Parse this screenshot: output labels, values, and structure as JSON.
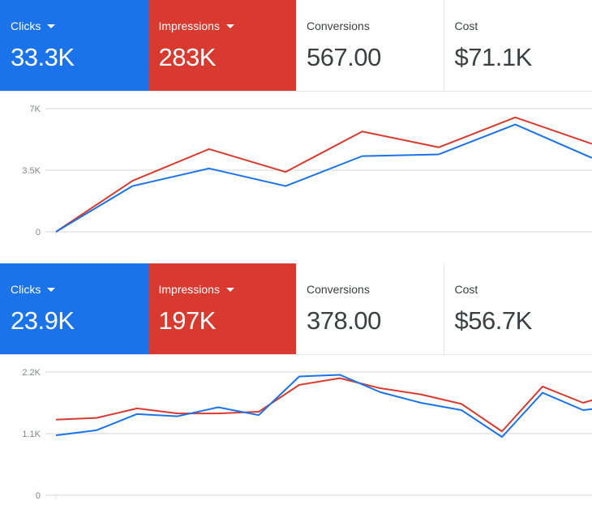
{
  "colors": {
    "clicks": "#1a73e8",
    "impressions": "#d93a30",
    "grid": "#e3e3e3"
  },
  "panels": [
    {
      "cards": [
        {
          "label": "Clicks",
          "value": "33.3K",
          "selected": true,
          "dropdown": true
        },
        {
          "label": "Impressions",
          "value": "283K",
          "selected": true,
          "dropdown": true
        },
        {
          "label": "Conversions",
          "value": "567.00",
          "selected": false
        },
        {
          "label": "Cost",
          "value": "$71.1K",
          "selected": false
        }
      ]
    },
    {
      "cards": [
        {
          "label": "Clicks",
          "value": "23.9K",
          "selected": true,
          "dropdown": true
        },
        {
          "label": "Impressions",
          "value": "197K",
          "selected": true,
          "dropdown": true
        },
        {
          "label": "Conversions",
          "value": "378.00",
          "selected": false
        },
        {
          "label": "Cost",
          "value": "$56.7K",
          "selected": false
        }
      ]
    }
  ],
  "chart_data": [
    {
      "type": "line",
      "yticks": [
        0,
        3500,
        7000
      ],
      "ytick_labels": [
        "0",
        "3.5K",
        "7K"
      ],
      "ylim": [
        0,
        7000
      ],
      "grid": true,
      "series": [
        {
          "name": "Clicks",
          "color": "#1a73e8",
          "values": [
            0,
            2600,
            3600,
            2600,
            4300,
            4400,
            6100,
            4200
          ]
        },
        {
          "name": "Impressions",
          "color": "#d93a30",
          "values": [
            0,
            2900,
            4700,
            3400,
            5700,
            4800,
            6500,
            5000
          ]
        }
      ]
    },
    {
      "type": "line",
      "yticks": [
        0,
        1100,
        2200
      ],
      "ytick_labels": [
        "0",
        "1.1K",
        "2.2K"
      ],
      "ylim": [
        0,
        2200
      ],
      "grid": true,
      "series": [
        {
          "name": "Clicks",
          "color": "#1a73e8",
          "values": [
            1070,
            1160,
            1450,
            1410,
            1570,
            1430,
            2120,
            2150,
            1840,
            1650,
            1520,
            1040,
            1830,
            1520,
            1600
          ]
        },
        {
          "name": "Impressions",
          "color": "#d93a30",
          "values": [
            1350,
            1380,
            1550,
            1460,
            1460,
            1490,
            1970,
            2090,
            1910,
            1800,
            1630,
            1140,
            1940,
            1650,
            1860
          ]
        }
      ]
    }
  ]
}
